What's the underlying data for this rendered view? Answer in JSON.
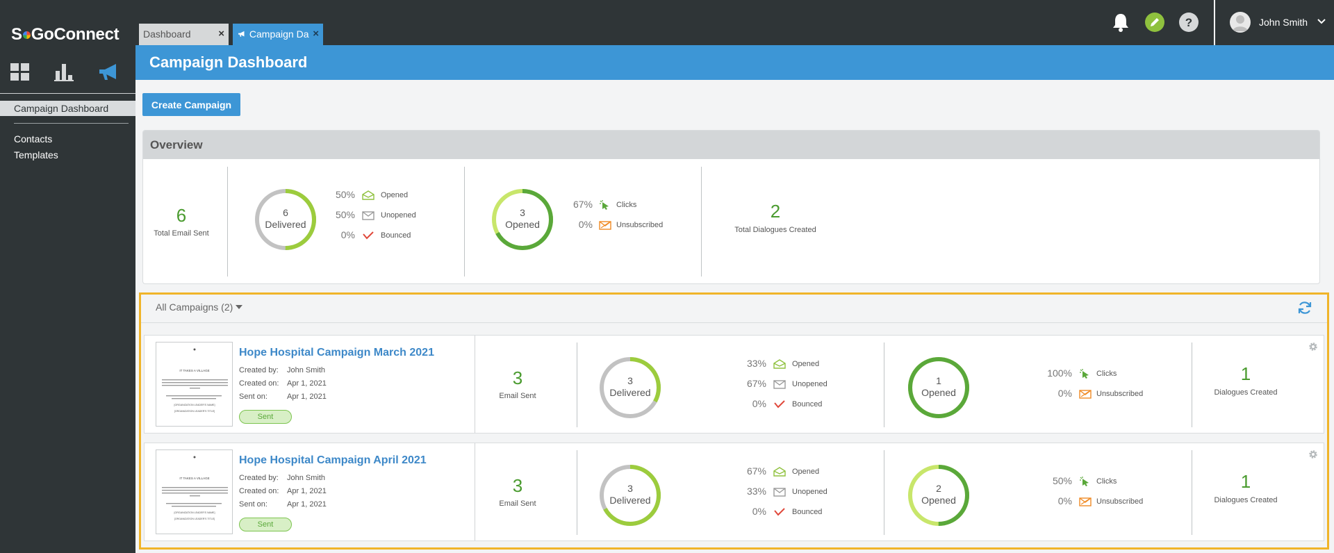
{
  "app": {
    "logo_s": "S",
    "logo_rest": "GoConnect"
  },
  "sidebar": {
    "active_item": "Campaign Dashboard",
    "items": [
      "Contacts",
      "Templates"
    ]
  },
  "tabs": [
    {
      "label": "Dashboard"
    },
    {
      "label": "Campaign Da"
    }
  ],
  "tab_close": "×",
  "user": {
    "name": "John Smith"
  },
  "header": {
    "title": "Campaign Dashboard"
  },
  "toolbar": {
    "create_label": "Create Campaign"
  },
  "overview": {
    "title": "Overview",
    "total_sent": "6",
    "total_sent_label": "Total Email Sent",
    "delivered_num": "6",
    "delivered_label": "Delivered",
    "delivered_fraction": 0.5,
    "opened_pct": "50%",
    "opened_label": "Opened",
    "unopened_pct": "50%",
    "unopened_label": "Unopened",
    "bounced_pct": "0%",
    "bounced_label": "Bounced",
    "opened_num": "3",
    "opened_donut_label": "Opened",
    "opened_fraction": 0.67,
    "clicks_pct": "67%",
    "clicks_label": "Clicks",
    "unsub_pct": "0%",
    "unsub_label": "Unsubscribed",
    "dialogues": "2",
    "dialogues_label": "Total Dialogues Created"
  },
  "campaigns": {
    "filter_label": "All Campaigns (2)",
    "labels": {
      "created_by": "Created by:",
      "created_on": "Created on:",
      "sent_on": "Sent on:",
      "email_sent": "Email Sent",
      "delivered": "Delivered",
      "opened": "Opened",
      "unopened": "Unopened",
      "bounced": "Bounced",
      "clicks": "Clicks",
      "unsubscribed": "Unsubscribed",
      "dialogues": "Dialogues Created"
    },
    "items": [
      {
        "name": "Hope Hospital Campaign March 2021",
        "created_by": "John Smith",
        "created_on": "Apr 1, 2021",
        "sent_on": "Apr 1, 2021",
        "status": "Sent",
        "email_sent": "3",
        "delivered_num": "3",
        "delivered_fraction": 0.33,
        "opened_pct": "33%",
        "unopened_pct": "67%",
        "bounced_pct": "0%",
        "opened_num": "1",
        "opened_fraction": 1.0,
        "clicks_pct": "100%",
        "unsub_pct": "0%",
        "dialogues": "1"
      },
      {
        "name": "Hope Hospital Campaign April 2021",
        "created_by": "John Smith",
        "created_on": "Apr 1, 2021",
        "sent_on": "Apr 1, 2021",
        "status": "Sent",
        "email_sent": "3",
        "delivered_num": "3",
        "delivered_fraction": 0.67,
        "opened_pct": "67%",
        "unopened_pct": "33%",
        "bounced_pct": "0%",
        "opened_num": "2",
        "opened_fraction": 0.5,
        "clicks_pct": "50%",
        "unsub_pct": "0%",
        "dialogues": "1"
      }
    ]
  },
  "thumbnail": {
    "headline": "IT TAKES A VILLAGE",
    "signature": "[ORGANIZATION LEADER'S NAME]",
    "signature_title": "[ORGANIZATION LEADER'S TITLE]"
  },
  "colors": {
    "brand_blue": "#3d96d6",
    "success_green": "#4a9b2f",
    "donut_green": "#9ccc3d",
    "donut_dark_green": "#5aa83a",
    "donut_light_green": "#c8e66b",
    "donut_gray": "#c2c2c2",
    "highlight": "#f0b429"
  }
}
